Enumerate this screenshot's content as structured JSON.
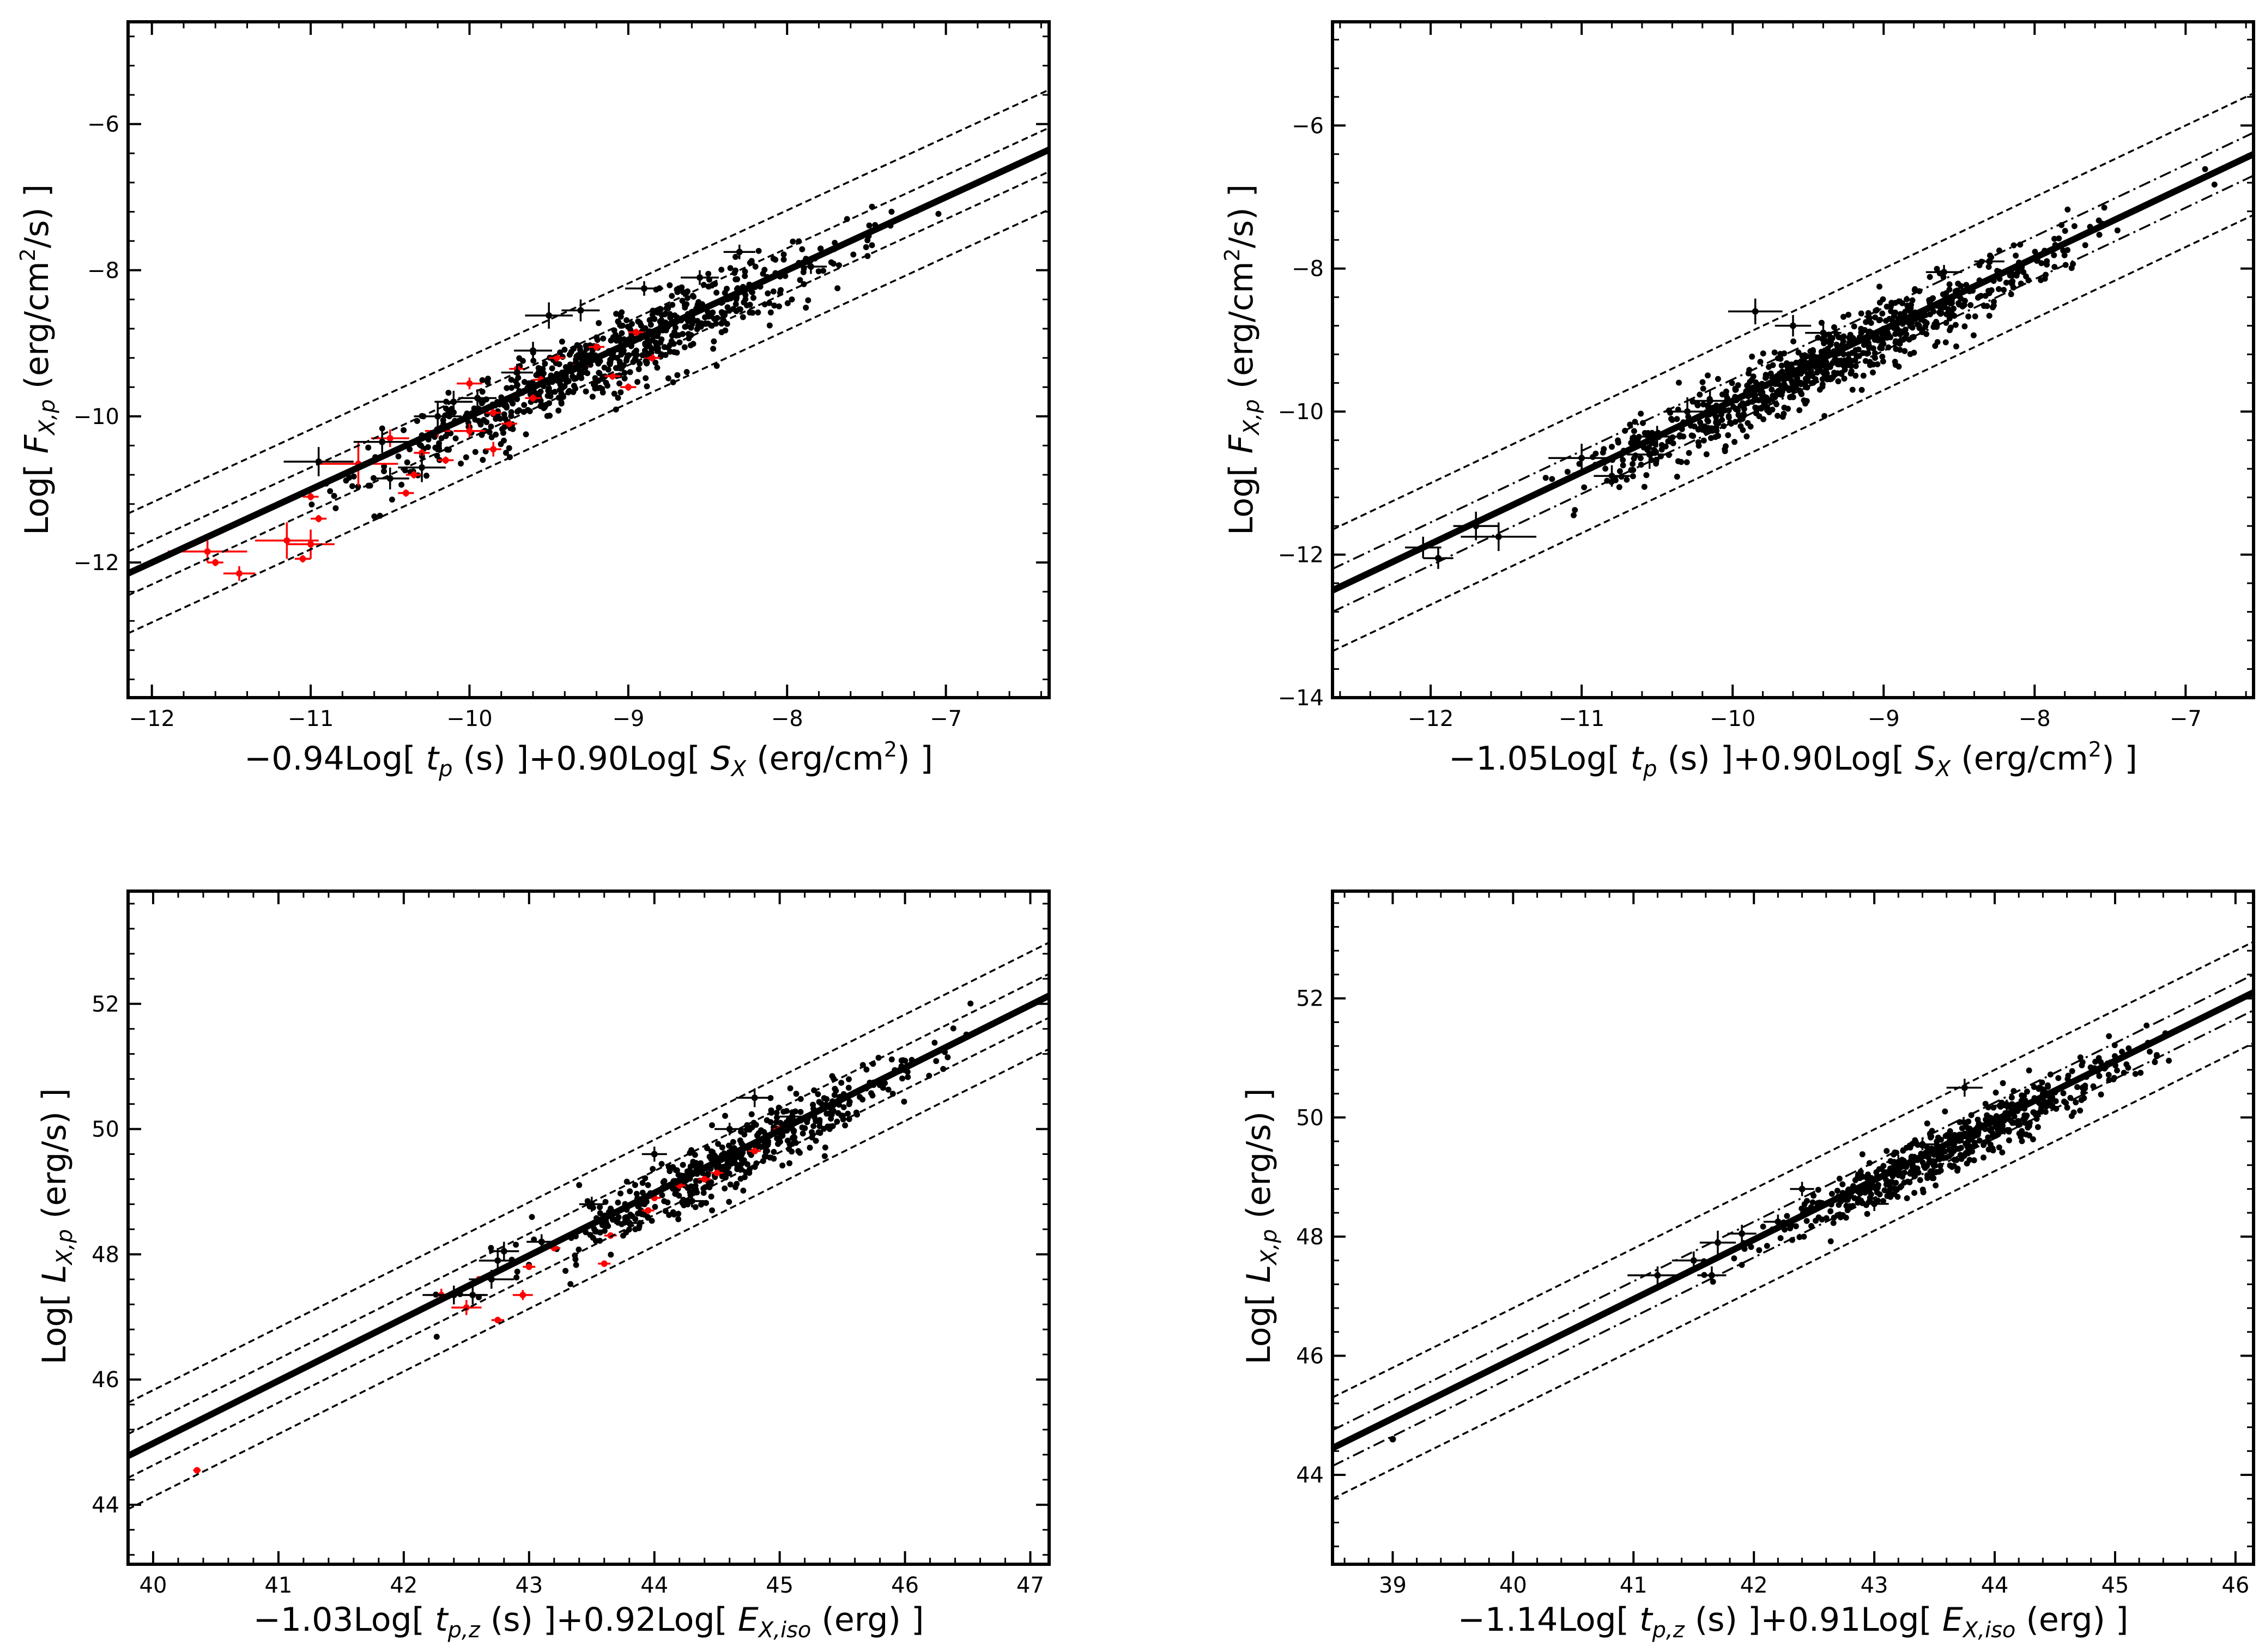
{
  "chart_data": [
    {
      "type": "scatter",
      "panel": "top-left",
      "xlabel": "−0.94Log[ t_p (s) ]+0.90Log[ S_X (erg/cm²) ]",
      "xlabel_parts": {
        "pre": "−0.94Log[ ",
        "v1": "t",
        "s1": "p",
        "mid": " (s) ]+0.90Log[ ",
        "v2": "S",
        "s2": "X",
        "post": " (erg/cm",
        "sup": "2",
        "end": ") ]"
      },
      "ylabel_parts": {
        "pre": "Log[ ",
        "v": "F",
        "s": "X,p",
        "mid": " (erg/cm",
        "sup": "2",
        "end": "/s) ]"
      },
      "xlim": [
        -12.15,
        -6.35
      ],
      "ylim": [
        -13.85,
        -4.6
      ],
      "xticks": [
        -12,
        -11,
        -10,
        -9,
        -8,
        -7
      ],
      "yticks": [
        -12,
        -10,
        -8,
        -6
      ],
      "xtick_labels": [
        "−12",
        "−11",
        "−10",
        "−9",
        "−8",
        "−7"
      ],
      "ytick_labels": [
        "−12",
        "−10",
        "−8",
        "−6"
      ],
      "fit": {
        "slope": 1.0,
        "intercept": 0.0
      },
      "bands": {
        "inner": 0.3,
        "outer": 0.82,
        "inner_style": "dashed"
      },
      "cloud": {
        "n": 720,
        "x_center": -9.1,
        "x_spread": 0.75,
        "x_min": -11.0,
        "x_max": -6.6,
        "y_scatter": 0.25
      },
      "black_points": [
        {
          "x": -10.95,
          "y": -10.62,
          "xe": 0.22,
          "ye": 0.2
        },
        {
          "x": -10.5,
          "y": -10.85,
          "xe": 0.12,
          "ye": 0.15
        },
        {
          "x": -10.3,
          "y": -10.7,
          "xe": 0.15,
          "ye": 0.2
        },
        {
          "x": -10.55,
          "y": -10.35,
          "xe": 0.18,
          "ye": 0.15
        },
        {
          "x": -10.2,
          "y": -10.0,
          "xe": 0.15,
          "ye": 0.2
        },
        {
          "x": -9.95,
          "y": -9.75,
          "xe": 0.12,
          "ye": 0.12
        },
        {
          "x": -10.1,
          "y": -9.8,
          "xe": 0.12,
          "ye": 0.15
        },
        {
          "x": -9.5,
          "y": -8.62,
          "xe": 0.15,
          "ye": 0.18
        },
        {
          "x": -9.3,
          "y": -8.55,
          "xe": 0.12,
          "ye": 0.15
        },
        {
          "x": -9.6,
          "y": -9.1,
          "xe": 0.12,
          "ye": 0.12
        },
        {
          "x": -9.7,
          "y": -9.4,
          "xe": 0.1,
          "ye": 0.12
        },
        {
          "x": -8.9,
          "y": -8.25,
          "xe": 0.12,
          "ye": 0.1
        },
        {
          "x": -8.55,
          "y": -8.1,
          "xe": 0.12,
          "ye": 0.1
        },
        {
          "x": -8.3,
          "y": -7.75,
          "xe": 0.1,
          "ye": 0.1
        },
        {
          "x": -7.85,
          "y": -7.95,
          "xe": 0.1,
          "ye": 0.1
        }
      ],
      "red_points": [
        {
          "x": -11.65,
          "y": -11.85,
          "xe": 0.25,
          "ye": 0.15
        },
        {
          "x": -11.45,
          "y": -12.15,
          "xe": 0.1,
          "ye": 0.1
        },
        {
          "x": -11.15,
          "y": -11.7,
          "xe": 0.2,
          "ye": 0.25
        },
        {
          "x": -11.0,
          "y": -11.75,
          "xe": 0.15,
          "ye": 0.2
        },
        {
          "x": -11.05,
          "y": -11.95,
          "xe": 0.05,
          "ye": 0.05
        },
        {
          "x": -10.95,
          "y": -11.4,
          "xe": 0.05,
          "ye": 0.05
        },
        {
          "x": -11.0,
          "y": -11.1,
          "xe": 0.05,
          "ye": 0.05
        },
        {
          "x": -11.6,
          "y": -12.0,
          "xe": 0.05,
          "ye": 0.05
        },
        {
          "x": -10.7,
          "y": -10.65,
          "xe": 0.25,
          "ye": 0.3
        },
        {
          "x": -10.5,
          "y": -10.3,
          "xe": 0.12,
          "ye": 0.12
        },
        {
          "x": -10.3,
          "y": -10.5,
          "xe": 0.05,
          "ye": 0.05
        },
        {
          "x": -10.2,
          "y": -10.2,
          "xe": 0.08,
          "ye": 0.08
        },
        {
          "x": -10.15,
          "y": -10.6,
          "xe": 0.05,
          "ye": 0.05
        },
        {
          "x": -10.0,
          "y": -10.2,
          "xe": 0.1,
          "ye": 0.1
        },
        {
          "x": -10.0,
          "y": -9.55,
          "xe": 0.08,
          "ye": 0.08
        },
        {
          "x": -9.85,
          "y": -10.45,
          "xe": 0.05,
          "ye": 0.1
        },
        {
          "x": -9.85,
          "y": -9.95,
          "xe": 0.05,
          "ye": 0.05
        },
        {
          "x": -9.7,
          "y": -9.35,
          "xe": 0.05,
          "ye": 0.05
        },
        {
          "x": -9.6,
          "y": -9.75,
          "xe": 0.05,
          "ye": 0.05
        },
        {
          "x": -9.55,
          "y": -9.5,
          "xe": 0.05,
          "ye": 0.05
        },
        {
          "x": -9.45,
          "y": -9.2,
          "xe": 0.05,
          "ye": 0.05
        },
        {
          "x": -9.3,
          "y": -9.3,
          "xe": 0.05,
          "ye": 0.05
        },
        {
          "x": -9.2,
          "y": -9.05,
          "xe": 0.05,
          "ye": 0.05
        },
        {
          "x": -9.1,
          "y": -9.45,
          "xe": 0.05,
          "ye": 0.05
        },
        {
          "x": -9.0,
          "y": -9.6,
          "xe": 0.05,
          "ye": 0.05
        },
        {
          "x": -8.95,
          "y": -8.85,
          "xe": 0.05,
          "ye": 0.05
        },
        {
          "x": -8.85,
          "y": -9.2,
          "xe": 0.05,
          "ye": 0.05
        },
        {
          "x": -9.75,
          "y": -10.1,
          "xe": 0.05,
          "ye": 0.05
        },
        {
          "x": -10.35,
          "y": -10.8,
          "xe": 0.05,
          "ye": 0.05
        },
        {
          "x": -10.4,
          "y": -11.05,
          "xe": 0.05,
          "ye": 0.05
        }
      ]
    },
    {
      "type": "scatter",
      "panel": "top-right",
      "xlabel": "−1.05Log[ t_p (s) ]+0.90Log[ S_X (erg/cm²) ]",
      "xlabel_parts": {
        "pre": "−1.05Log[ ",
        "v1": "t",
        "s1": "p",
        "mid": " (s) ]+0.90Log[ ",
        "v2": "S",
        "s2": "X",
        "post": " (erg/cm",
        "sup": "2",
        "end": ") ]"
      },
      "ylabel_parts": {
        "pre": "Log[ ",
        "v": "F",
        "s": "X,p",
        "mid": " (erg/cm",
        "sup": "2",
        "end": "/s) ]"
      },
      "xlim": [
        -12.65,
        -6.55
      ],
      "ylim": [
        -14.0,
        -4.55
      ],
      "xticks": [
        -12,
        -11,
        -10,
        -9,
        -8,
        -7
      ],
      "yticks": [
        -14,
        -12,
        -10,
        -8,
        -6
      ],
      "xtick_labels": [
        "−12",
        "−11",
        "−10",
        "−9",
        "−8",
        "−7"
      ],
      "ytick_labels": [
        "−14",
        "−12",
        "−10",
        "−8",
        "−6"
      ],
      "fit": {
        "slope": 1.0,
        "intercept": 0.15
      },
      "bands": {
        "inner": 0.3,
        "outer": 0.85,
        "inner_style": "dashdot"
      },
      "cloud": {
        "n": 850,
        "x_center": -9.4,
        "x_spread": 0.8,
        "x_min": -11.3,
        "x_max": -6.7,
        "y_scatter": 0.22
      },
      "black_points": [
        {
          "x": -12.05,
          "y": -11.9,
          "xe": 0.12,
          "ye": 0.15
        },
        {
          "x": -11.95,
          "y": -12.05,
          "xe": 0.1,
          "ye": 0.15
        },
        {
          "x": -11.7,
          "y": -11.6,
          "xe": 0.15,
          "ye": 0.2
        },
        {
          "x": -11.55,
          "y": -11.75,
          "xe": 0.25,
          "ye": 0.2
        },
        {
          "x": -11.0,
          "y": -10.65,
          "xe": 0.22,
          "ye": 0.2
        },
        {
          "x": -10.8,
          "y": -10.9,
          "xe": 0.12,
          "ye": 0.15
        },
        {
          "x": -10.55,
          "y": -10.6,
          "xe": 0.15,
          "ye": 0.2
        },
        {
          "x": -10.5,
          "y": -10.35,
          "xe": 0.18,
          "ye": 0.15
        },
        {
          "x": -10.3,
          "y": -10.0,
          "xe": 0.15,
          "ye": 0.2
        },
        {
          "x": -10.15,
          "y": -9.85,
          "xe": 0.12,
          "ye": 0.15
        },
        {
          "x": -9.85,
          "y": -8.6,
          "xe": 0.18,
          "ye": 0.18
        },
        {
          "x": -9.6,
          "y": -8.8,
          "xe": 0.12,
          "ye": 0.15
        },
        {
          "x": -9.4,
          "y": -8.9,
          "xe": 0.12,
          "ye": 0.12
        },
        {
          "x": -8.6,
          "y": -8.05,
          "xe": 0.12,
          "ye": 0.1
        },
        {
          "x": -8.3,
          "y": -7.9,
          "xe": 0.1,
          "ye": 0.1
        }
      ],
      "red_points": []
    },
    {
      "type": "scatter",
      "panel": "bottom-left",
      "xlabel": "−1.03Log[ t_p,z (s) ]+0.92Log[ E_X,iso (erg) ]",
      "xlabel_parts": {
        "pre": "−1.03Log[ ",
        "v1": "t",
        "s1": "p,z",
        "mid": " (s) ]+0.92Log[ ",
        "v2": "E",
        "s2": "X,iso",
        "post": " (erg) ]"
      },
      "ylabel_parts": {
        "pre": "Log[ ",
        "v": "L",
        "s": "X,p",
        "mid": " (erg/s) ]"
      },
      "xlim": [
        39.8,
        47.15
      ],
      "ylim": [
        43.05,
        53.8
      ],
      "xticks": [
        40,
        41,
        42,
        43,
        44,
        45,
        46,
        47
      ],
      "yticks": [
        44,
        46,
        48,
        50,
        52
      ],
      "xtick_labels": [
        "40",
        "41",
        "42",
        "43",
        "44",
        "45",
        "46",
        "47"
      ],
      "ytick_labels": [
        "44",
        "46",
        "48",
        "50",
        "52"
      ],
      "fit": {
        "slope": 1.0,
        "intercept": 4.98
      },
      "bands": {
        "inner": 0.35,
        "outer": 0.85,
        "inner_style": "dashed"
      },
      "cloud": {
        "n": 500,
        "x_center": 44.6,
        "x_spread": 0.8,
        "x_min": 42.2,
        "x_max": 46.7,
        "y_scatter": 0.25
      },
      "black_points": [
        {
          "x": 42.4,
          "y": 47.35,
          "xe": 0.25,
          "ye": 0.15
        },
        {
          "x": 42.7,
          "y": 47.6,
          "xe": 0.18,
          "ye": 0.15
        },
        {
          "x": 42.55,
          "y": 47.35,
          "xe": 0.12,
          "ye": 0.15
        },
        {
          "x": 42.75,
          "y": 47.9,
          "xe": 0.15,
          "ye": 0.2
        },
        {
          "x": 42.8,
          "y": 48.05,
          "xe": 0.12,
          "ye": 0.15
        },
        {
          "x": 43.1,
          "y": 48.2,
          "xe": 0.12,
          "ye": 0.12
        },
        {
          "x": 43.5,
          "y": 48.8,
          "xe": 0.1,
          "ye": 0.12
        },
        {
          "x": 43.8,
          "y": 48.5,
          "xe": 0.12,
          "ye": 0.12
        },
        {
          "x": 44.0,
          "y": 49.6,
          "xe": 0.1,
          "ye": 0.12
        },
        {
          "x": 44.3,
          "y": 48.85,
          "xe": 0.1,
          "ye": 0.1
        },
        {
          "x": 44.6,
          "y": 50.0,
          "xe": 0.12,
          "ye": 0.1
        },
        {
          "x": 44.8,
          "y": 50.5,
          "xe": 0.15,
          "ye": 0.15
        },
        {
          "x": 45.1,
          "y": 50.2,
          "xe": 0.1,
          "ye": 0.1
        }
      ],
      "red_points": [
        {
          "x": 40.35,
          "y": 44.55,
          "xe": 0.03,
          "ye": 0.05
        },
        {
          "x": 42.3,
          "y": 47.35,
          "xe": 0.1,
          "ye": 0.1
        },
        {
          "x": 42.5,
          "y": 47.15,
          "xe": 0.12,
          "ye": 0.12
        },
        {
          "x": 42.6,
          "y": 47.6,
          "xe": 0.05,
          "ye": 0.05
        },
        {
          "x": 42.75,
          "y": 46.95,
          "xe": 0.05,
          "ye": 0.05
        },
        {
          "x": 42.95,
          "y": 47.35,
          "xe": 0.08,
          "ye": 0.08
        },
        {
          "x": 43.0,
          "y": 47.8,
          "xe": 0.05,
          "ye": 0.05
        },
        {
          "x": 43.2,
          "y": 48.1,
          "xe": 0.05,
          "ye": 0.05
        },
        {
          "x": 43.6,
          "y": 47.85,
          "xe": 0.05,
          "ye": 0.05
        },
        {
          "x": 43.65,
          "y": 48.3,
          "xe": 0.05,
          "ye": 0.05
        },
        {
          "x": 43.95,
          "y": 48.7,
          "xe": 0.05,
          "ye": 0.05
        },
        {
          "x": 44.0,
          "y": 48.9,
          "xe": 0.05,
          "ye": 0.05
        },
        {
          "x": 44.2,
          "y": 49.1,
          "xe": 0.05,
          "ye": 0.05
        },
        {
          "x": 44.4,
          "y": 49.2,
          "xe": 0.05,
          "ye": 0.05
        },
        {
          "x": 44.5,
          "y": 49.3,
          "xe": 0.05,
          "ye": 0.05
        },
        {
          "x": 44.8,
          "y": 49.65,
          "xe": 0.05,
          "ye": 0.05
        },
        {
          "x": 45.0,
          "y": 50.0,
          "xe": 0.05,
          "ye": 0.05
        }
      ]
    },
    {
      "type": "scatter",
      "panel": "bottom-right",
      "xlabel": "−1.14Log[ t_p,z (s) ]+0.91Log[ E_X,iso (erg) ]",
      "xlabel_parts": {
        "pre": "−1.14Log[ ",
        "v1": "t",
        "s1": "p,z",
        "mid": " (s) ]+0.91Log[ ",
        "v2": "E",
        "s2": "X,iso",
        "post": " (erg) ]"
      },
      "ylabel_parts": {
        "pre": "Log[ ",
        "v": "L",
        "s": "X,p",
        "mid": " (erg/s) ]"
      },
      "xlim": [
        38.5,
        46.15
      ],
      "ylim": [
        42.5,
        53.8
      ],
      "xticks": [
        39,
        40,
        41,
        42,
        43,
        44,
        45,
        46
      ],
      "yticks": [
        44,
        46,
        48,
        50,
        52
      ],
      "xtick_labels": [
        "39",
        "40",
        "41",
        "42",
        "43",
        "44",
        "45",
        "46"
      ],
      "ytick_labels": [
        "44",
        "46",
        "48",
        "50",
        "52"
      ],
      "fit": {
        "slope": 1.0,
        "intercept": 5.95
      },
      "bands": {
        "inner": 0.3,
        "outer": 0.85,
        "inner_style": "dashdot"
      },
      "cloud": {
        "n": 560,
        "x_center": 43.6,
        "x_spread": 0.75,
        "x_min": 41.0,
        "x_max": 45.6,
        "y_scatter": 0.22
      },
      "black_points": [
        {
          "x": 39.0,
          "y": 44.6,
          "xe": 0.02,
          "ye": 0.04
        },
        {
          "x": 41.2,
          "y": 47.35,
          "xe": 0.25,
          "ye": 0.15
        },
        {
          "x": 41.5,
          "y": 47.6,
          "xe": 0.18,
          "ye": 0.15
        },
        {
          "x": 41.65,
          "y": 47.35,
          "xe": 0.12,
          "ye": 0.15
        },
        {
          "x": 41.7,
          "y": 47.9,
          "xe": 0.15,
          "ye": 0.2
        },
        {
          "x": 41.9,
          "y": 48.05,
          "xe": 0.12,
          "ye": 0.15
        },
        {
          "x": 42.2,
          "y": 48.25,
          "xe": 0.12,
          "ye": 0.12
        },
        {
          "x": 42.4,
          "y": 48.8,
          "xe": 0.1,
          "ye": 0.12
        },
        {
          "x": 43.0,
          "y": 48.55,
          "xe": 0.12,
          "ye": 0.12
        },
        {
          "x": 43.2,
          "y": 49.25,
          "xe": 0.1,
          "ye": 0.12
        },
        {
          "x": 43.4,
          "y": 49.55,
          "xe": 0.1,
          "ye": 0.1
        },
        {
          "x": 43.75,
          "y": 50.5,
          "xe": 0.15,
          "ye": 0.15
        },
        {
          "x": 44.1,
          "y": 50.2,
          "xe": 0.1,
          "ye": 0.1
        }
      ],
      "red_points": []
    }
  ],
  "colors": {
    "black": "#000000",
    "red": "#ff0000",
    "background": "#ffffff"
  }
}
